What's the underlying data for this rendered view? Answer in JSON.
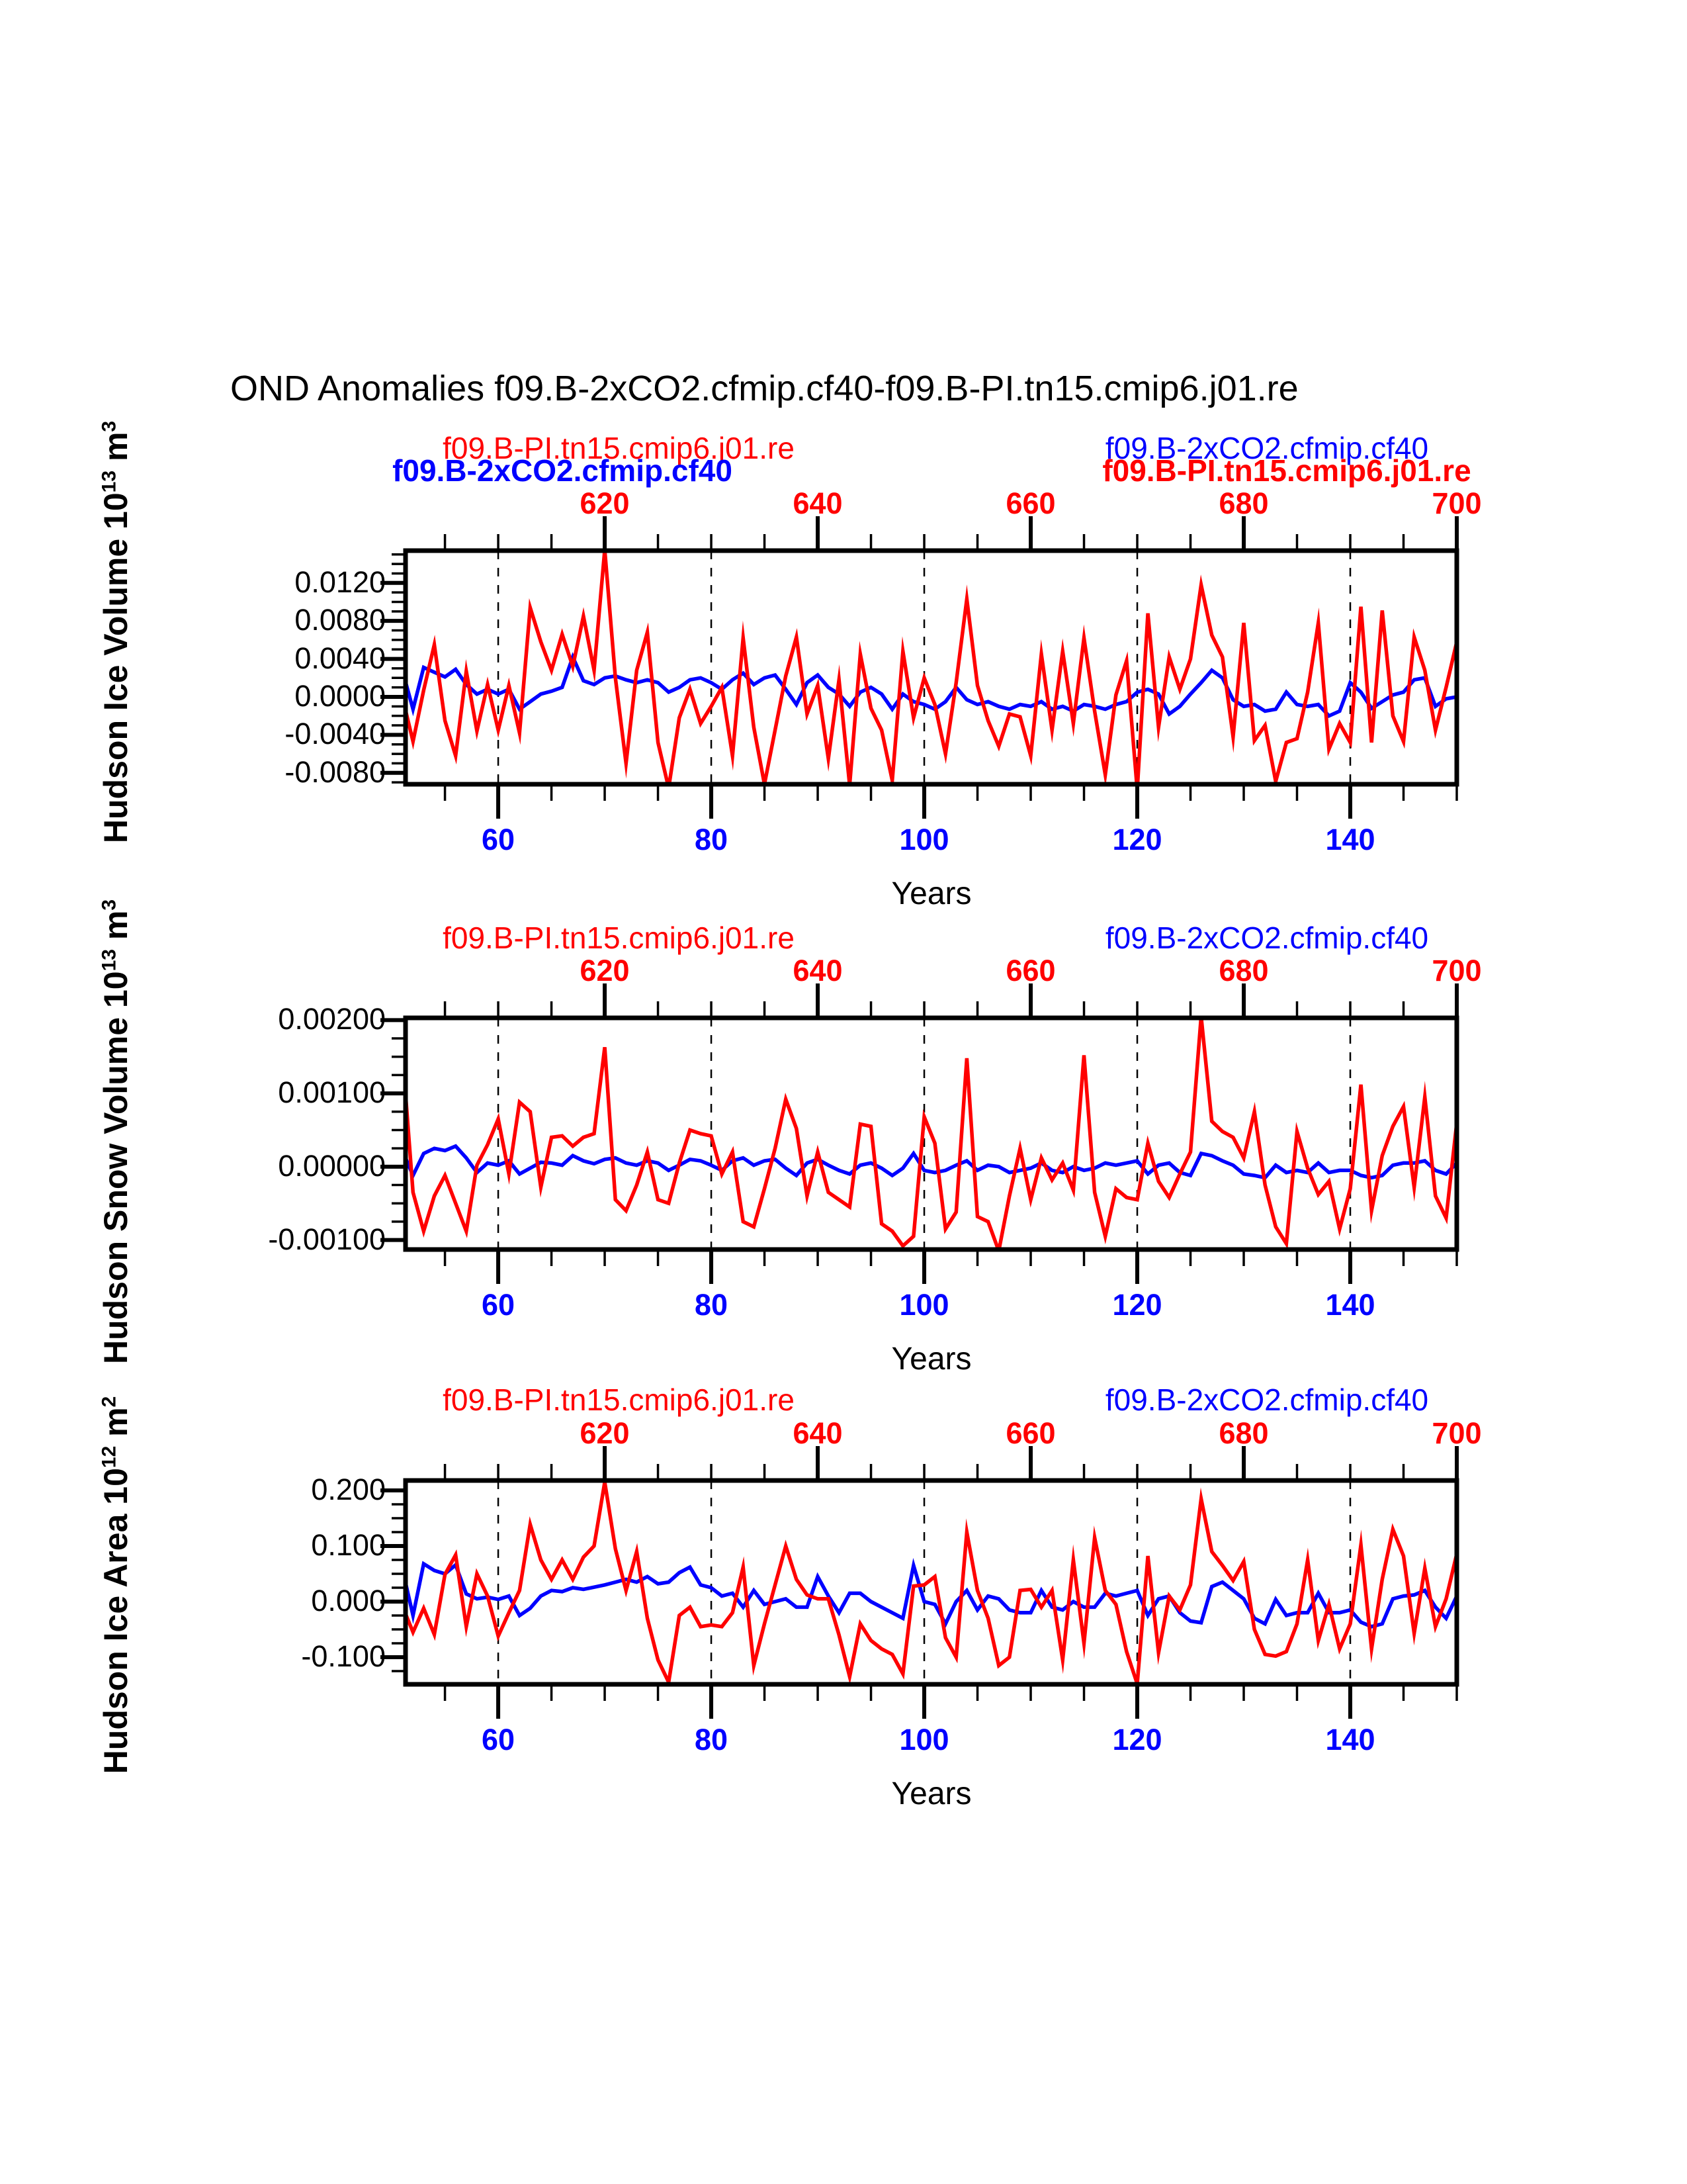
{
  "title": "OND Anomalies f09.B-2xCO2.cfmip.cf40-f09.B-PI.tn15.cmip6.j01.re",
  "colors": {
    "red": "#ff0000",
    "blue": "#0000ff",
    "black": "#000000",
    "background": "#ffffff"
  },
  "xaxis": {
    "label": "Years"
  },
  "panels": [
    {
      "name": "hudson-ice-volume",
      "ylabel": {
        "base": "Hudson Ice Volume 10",
        "exp": "13",
        "unit": " m",
        "unit_exp": "3"
      },
      "legends": [
        {
          "text": "f09.B-PI.tn15.cmip6.j01.re",
          "color": "red",
          "bold": false,
          "slot": "left-top"
        },
        {
          "text": "f09.B-2xCO2.cfmip.cf40",
          "color": "blue",
          "bold": true,
          "slot": "left-bottom"
        },
        {
          "text": "f09.B-2xCO2.cfmip.cf40",
          "color": "blue",
          "bold": false,
          "slot": "right-top"
        },
        {
          "text": "f09.B-PI.tn15.cmip6.j01.re",
          "color": "red",
          "bold": true,
          "slot": "right-bottom"
        }
      ]
    },
    {
      "name": "hudson-snow-volume",
      "ylabel": {
        "base": "Hudson Snow Volume 10",
        "exp": "13",
        "unit": " m",
        "unit_exp": "3"
      },
      "legends": [
        {
          "text": "f09.B-PI.tn15.cmip6.j01.re",
          "color": "red",
          "bold": false,
          "slot": "left"
        },
        {
          "text": "f09.B-2xCO2.cfmip.cf40",
          "color": "blue",
          "bold": false,
          "slot": "right"
        }
      ]
    },
    {
      "name": "hudson-ice-area",
      "ylabel": {
        "base": "Hudson Ice Area 10",
        "exp": "12",
        "unit": " m",
        "unit_exp": "2"
      },
      "legends": [
        {
          "text": "f09.B-PI.tn15.cmip6.j01.re",
          "color": "red",
          "bold": false,
          "slot": "left"
        },
        {
          "text": "f09.B-2xCO2.cfmip.cf40",
          "color": "blue",
          "bold": false,
          "slot": "right"
        }
      ]
    }
  ],
  "chart_data": [
    {
      "type": "line",
      "title": "Hudson Ice Volume 10^13 m^3",
      "xlabel": "Years",
      "x_start": 51,
      "x_step": 1,
      "xlim": [
        51.3,
        150
      ],
      "x_ticks_bottom": {
        "values": [
          60,
          80,
          100,
          120,
          140
        ],
        "minor_step": 5,
        "color": "#0000ff"
      },
      "x_ticks_top": {
        "values": [
          620,
          640,
          660,
          680,
          700
        ],
        "minor_step": 5,
        "offset_vs_bottom": 550,
        "color": "#ff0000"
      },
      "grid_vertical_dashed_at": [
        60,
        80,
        100,
        120,
        140
      ],
      "ylim": [
        -0.0092,
        0.0154
      ],
      "y_ticks": {
        "labels": [
          "0.0120",
          "0.0080",
          "0.0040",
          "0.0000",
          "-0.0040",
          "-0.0080"
        ],
        "values": [
          0.012,
          0.008,
          0.004,
          0.0,
          -0.004,
          -0.008
        ],
        "minor_step": 0.001
      },
      "series": [
        {
          "name": "f09.B-2xCO2.cfmip.cf40",
          "color": "#0000ff",
          "values": [
            0.0028,
            -0.0013,
            0.0031,
            0.0026,
            0.0021,
            0.0029,
            0.0013,
            0.0003,
            0.0008,
            0.0003,
            0.0008,
            -0.0013,
            -0.0005,
            0.0003,
            0.0006,
            0.001,
            0.0042,
            0.0017,
            0.0013,
            0.002,
            0.0022,
            0.0018,
            0.0015,
            0.0018,
            0.0015,
            0.0005,
            0.001,
            0.0018,
            0.002,
            0.0015,
            0.0008,
            0.0018,
            0.0025,
            0.0013,
            0.002,
            0.0023,
            0.0008,
            -0.0008,
            0.0015,
            0.0023,
            0.001,
            0.0003,
            -0.001,
            0.0005,
            0.001,
            0.0003,
            -0.0013,
            0.0003,
            -0.0005,
            -0.0008,
            -0.0013,
            -0.0005,
            0.001,
            -0.0003,
            -0.0008,
            -0.0005,
            -0.001,
            -0.0013,
            -0.0008,
            -0.001,
            -0.0005,
            -0.0013,
            -0.001,
            -0.0015,
            -0.0008,
            -0.001,
            -0.0013,
            -0.0008,
            -0.0005,
            0.0005,
            0.0008,
            0.0003,
            -0.0018,
            -0.001,
            0.0003,
            0.0015,
            0.0028,
            0.002,
            -0.0003,
            -0.001,
            -0.0008,
            -0.0015,
            -0.0013,
            0.0005,
            -0.0008,
            -0.001,
            -0.0008,
            -0.002,
            -0.0015,
            0.0015,
            0.0005,
            -0.0012,
            -0.0005,
            0.0002,
            0.0005,
            0.0018,
            0.002,
            -0.001,
            -0.0002,
            0.0
          ]
        },
        {
          "name": "f09.B-PI.tn15.cmip6.j01.re",
          "color": "#ff0000",
          "values": [
            0.0,
            -0.0047,
            0.0007,
            0.0055,
            -0.0025,
            -0.0062,
            0.0027,
            -0.0036,
            0.0013,
            -0.0035,
            0.0012,
            -0.0038,
            0.0094,
            0.0058,
            0.0028,
            0.0066,
            0.0032,
            0.0085,
            0.0028,
            0.0155,
            0.002,
            -0.007,
            0.0028,
            0.0068,
            -0.0048,
            -0.0096,
            -0.0022,
            0.0008,
            -0.0028,
            -0.001,
            0.001,
            -0.0062,
            0.0062,
            -0.0032,
            -0.0092,
            -0.0035,
            0.0022,
            0.0063,
            -0.0018,
            0.0012,
            -0.0065,
            0.0018,
            -0.0093,
            0.0045,
            -0.0012,
            -0.0035,
            -0.0088,
            0.0048,
            -0.0022,
            0.002,
            -0.0008,
            -0.006,
            0.0015,
            0.0103,
            0.0012,
            -0.0025,
            -0.0052,
            -0.0018,
            -0.0021,
            -0.0062,
            0.0045,
            -0.0035,
            0.0048,
            -0.0028,
            0.0062,
            -0.0015,
            -0.0082,
            0.0002,
            0.0038,
            -0.0098,
            0.0088,
            -0.0032,
            0.0042,
            0.0008,
            0.004,
            0.0118,
            0.0065,
            0.0042,
            -0.0042,
            0.0078,
            -0.0046,
            -0.003,
            -0.0089,
            -0.0048,
            -0.0044,
            0.0005,
            0.0078,
            -0.0055,
            -0.0028,
            -0.0048,
            0.0095,
            -0.0048,
            0.0091,
            -0.002,
            -0.0047,
            0.0063,
            0.0028,
            -0.0035,
            0.001,
            0.0058
          ]
        }
      ]
    },
    {
      "type": "line",
      "title": "Hudson Snow Volume 10^13 m^3",
      "xlabel": "Years",
      "x_start": 51,
      "x_step": 1,
      "xlim": [
        51.3,
        150
      ],
      "x_ticks_bottom": {
        "values": [
          60,
          80,
          100,
          120,
          140
        ],
        "minor_step": 5,
        "color": "#0000ff"
      },
      "x_ticks_top": {
        "values": [
          620,
          640,
          660,
          680,
          700
        ],
        "minor_step": 5,
        "offset_vs_bottom": 550,
        "color": "#ff0000"
      },
      "grid_vertical_dashed_at": [
        60,
        80,
        100,
        120,
        140
      ],
      "ylim": [
        -0.00113,
        0.00203
      ],
      "y_ticks": {
        "labels": [
          "0.00200",
          "0.00100",
          "0.00000",
          "-0.00100"
        ],
        "values": [
          0.002,
          0.001,
          0.0,
          -0.001
        ],
        "minor_step": 0.00025
      },
      "series": [
        {
          "name": "f09.B-2xCO2.cfmip.cf40",
          "color": "#0000ff",
          "values": [
            0.00022,
            -0.00012,
            0.00018,
            0.00025,
            0.00022,
            0.00028,
            0.00012,
            -8e-05,
            5e-05,
            2e-05,
            8e-05,
            -0.0001,
            -2e-05,
            6e-05,
            5e-05,
            2e-05,
            0.00015,
            8e-05,
            4e-05,
            0.0001,
            0.00012,
            5e-05,
            2e-05,
            8e-05,
            5e-05,
            -5e-05,
            2e-05,
            0.0001,
            8e-05,
            2e-05,
            -5e-05,
            8e-05,
            0.00012,
            2e-05,
            8e-05,
            0.0001,
            -2e-05,
            -0.00012,
            5e-05,
            0.0001,
            2e-05,
            -5e-05,
            -0.0001,
            2e-05,
            5e-05,
            -2e-05,
            -0.00012,
            -2e-05,
            0.00018,
            -5e-05,
            -8e-05,
            -5e-05,
            2e-05,
            8e-05,
            -5e-05,
            2e-05,
            0.0,
            -8e-05,
            -5e-05,
            -2e-05,
            5e-05,
            -5e-05,
            -8e-05,
            0.0,
            -5e-05,
            -2e-05,
            5e-05,
            2e-05,
            5e-05,
            8e-05,
            -0.0001,
            2e-05,
            5e-05,
            -8e-05,
            -0.00012,
            0.00018,
            0.00015,
            8e-05,
            2e-05,
            -0.0001,
            -0.00012,
            -0.00015,
            2e-05,
            -8e-05,
            -5e-05,
            -8e-05,
            5e-05,
            -8e-05,
            -5e-05,
            -5e-05,
            -0.00012,
            -0.00015,
            -0.00012,
            2e-05,
            5e-05,
            5e-05,
            8e-05,
            -5e-05,
            -0.0001,
            5e-05
          ]
        },
        {
          "name": "f09.B-PI.tn15.cmip6.j01.re",
          "color": "#ff0000",
          "values": [
            0.00156,
            -0.00035,
            -0.00088,
            -0.0004,
            -0.00012,
            -0.0005,
            -0.00088,
            2e-05,
            0.0003,
            0.00065,
            -0.0001,
            0.00088,
            0.00075,
            -0.00028,
            0.0004,
            0.00042,
            0.00028,
            0.0004,
            0.00045,
            0.00163,
            -0.00045,
            -0.0006,
            -0.00025,
            0.0002,
            -0.00045,
            -0.0005,
            5e-05,
            0.0005,
            0.00045,
            0.00042,
            -0.0001,
            0.0002,
            -0.00075,
            -0.00082,
            -0.0003,
            0.00025,
            0.00092,
            0.00052,
            -0.0004,
            0.0002,
            -0.00035,
            -0.00045,
            -0.00055,
            0.00058,
            0.00055,
            -0.00078,
            -0.00088,
            -0.00108,
            -0.00095,
            0.00068,
            0.00032,
            -0.00085,
            -0.00062,
            0.00148,
            -0.00068,
            -0.00075,
            -0.00115,
            -0.0004,
            0.00025,
            -0.00045,
            0.00012,
            -0.00018,
            5e-05,
            -0.00032,
            0.00152,
            -0.00035,
            -0.00095,
            -0.0003,
            -0.00042,
            -0.00045,
            0.00032,
            -0.0002,
            -0.00042,
            -0.0001,
            0.0002,
            0.00205,
            0.00062,
            0.00048,
            0.0004,
            0.00012,
            0.00075,
            -0.00025,
            -0.00082,
            -0.00105,
            0.00048,
            -2e-05,
            -0.00038,
            -0.0002,
            -0.00085,
            -0.0003,
            0.00112,
            -0.0006,
            0.00015,
            0.00055,
            0.00082,
            -0.00028,
            0.00095,
            -0.0004,
            -0.0007,
            0.0006
          ]
        }
      ]
    },
    {
      "type": "line",
      "title": "Hudson Ice Area 10^12 m^2",
      "xlabel": "Years",
      "x_start": 51,
      "x_step": 1,
      "xlim": [
        51.3,
        150
      ],
      "x_ticks_bottom": {
        "values": [
          60,
          80,
          100,
          120,
          140
        ],
        "minor_step": 5,
        "color": "#0000ff"
      },
      "x_ticks_top": {
        "values": [
          620,
          640,
          660,
          680,
          700
        ],
        "minor_step": 5,
        "offset_vs_bottom": 550,
        "color": "#ff0000"
      },
      "grid_vertical_dashed_at": [
        60,
        80,
        100,
        120,
        140
      ],
      "ylim": [
        -0.1488,
        0.2179
      ],
      "y_ticks": {
        "labels": [
          "0.200",
          "0.100",
          "0.000",
          "-0.100"
        ],
        "values": [
          0.2,
          0.1,
          0.0,
          -0.1
        ],
        "minor_step": 0.025
      },
      "series": [
        {
          "name": "f09.B-2xCO2.cfmip.cf40",
          "color": "#0000ff",
          "values": [
            0.059,
            -0.025,
            0.068,
            0.056,
            0.05,
            0.066,
            0.014,
            0.005,
            0.008,
            0.004,
            0.01,
            -0.025,
            -0.012,
            0.01,
            0.02,
            0.018,
            0.025,
            0.022,
            0.026,
            0.03,
            0.035,
            0.04,
            0.035,
            0.045,
            0.032,
            0.035,
            0.052,
            0.062,
            0.03,
            0.025,
            0.01,
            0.015,
            -0.01,
            0.02,
            -0.005,
            0.0,
            0.005,
            -0.01,
            -0.01,
            0.045,
            0.01,
            -0.02,
            0.015,
            0.015,
            0.0,
            -0.01,
            -0.02,
            -0.03,
            0.065,
            0.0,
            -0.005,
            -0.04,
            0.0,
            0.02,
            -0.015,
            0.01,
            0.005,
            -0.015,
            -0.02,
            -0.02,
            0.02,
            -0.01,
            -0.015,
            0.0,
            -0.01,
            -0.01,
            0.015,
            0.01,
            0.015,
            0.02,
            -0.025,
            0.005,
            0.01,
            -0.02,
            -0.035,
            -0.038,
            0.027,
            0.035,
            0.02,
            0.005,
            -0.03,
            -0.04,
            0.004,
            -0.025,
            -0.02,
            -0.02,
            0.015,
            -0.02,
            -0.02,
            -0.015,
            -0.037,
            -0.045,
            -0.04,
            0.005,
            0.01,
            0.012,
            0.02,
            -0.01,
            -0.03,
            0.01
          ]
        },
        {
          "name": "f09.B-PI.tn15.cmip6.j01.re",
          "color": "#ff0000",
          "values": [
            -0.008,
            -0.055,
            -0.012,
            -0.059,
            0.049,
            0.084,
            -0.045,
            0.05,
            0.01,
            -0.062,
            -0.02,
            0.02,
            0.139,
            0.075,
            0.04,
            0.075,
            0.04,
            0.08,
            0.1,
            0.215,
            0.095,
            0.02,
            0.09,
            -0.03,
            -0.105,
            -0.145,
            -0.025,
            -0.01,
            -0.045,
            -0.042,
            -0.045,
            -0.02,
            0.062,
            -0.115,
            -0.04,
            0.03,
            0.1,
            0.04,
            0.012,
            0.005,
            0.005,
            -0.06,
            -0.135,
            -0.04,
            -0.07,
            -0.085,
            -0.095,
            -0.13,
            0.028,
            0.03,
            0.045,
            -0.065,
            -0.1,
            0.125,
            0.02,
            -0.03,
            -0.115,
            -0.1,
            0.02,
            0.022,
            -0.01,
            0.02,
            -0.105,
            0.075,
            -0.075,
            0.115,
            0.02,
            -0.005,
            -0.09,
            -0.148,
            0.082,
            -0.092,
            0.01,
            -0.015,
            0.03,
            0.185,
            0.09,
            0.065,
            0.038,
            0.072,
            -0.05,
            -0.095,
            -0.098,
            -0.09,
            -0.04,
            0.075,
            -0.07,
            -0.005,
            -0.085,
            -0.04,
            0.102,
            -0.085,
            0.04,
            0.13,
            0.082,
            -0.057,
            0.06,
            -0.045,
            0.005,
            0.086
          ]
        }
      ]
    }
  ]
}
